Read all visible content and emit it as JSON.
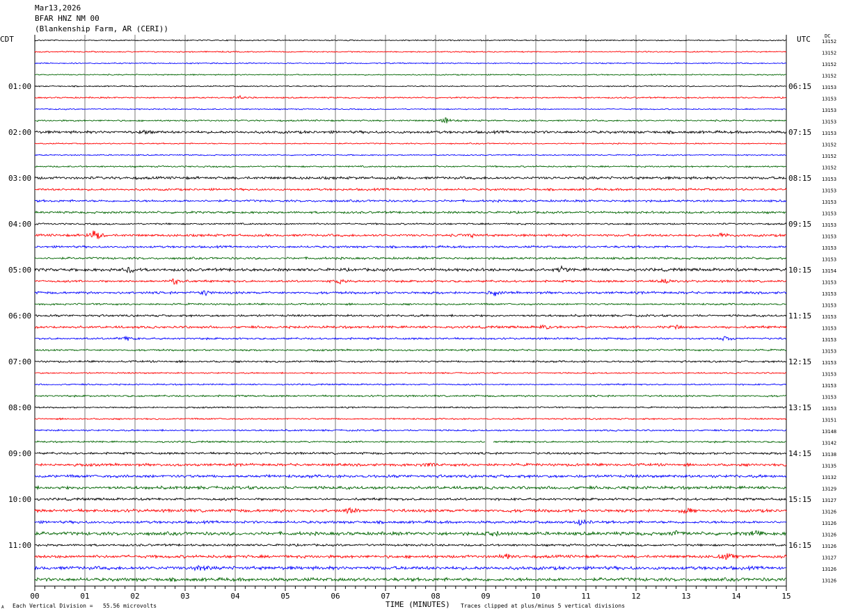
{
  "header": {
    "date": "Mar13,2026",
    "channel": "BFAR HNZ NM 00",
    "station": "(Blankenship Farm, AR (CERI))"
  },
  "axes": {
    "left_zone": "CDT",
    "right_zone": "UTC",
    "dc_label": "DC",
    "xlabel": "TIME (MINUTES)"
  },
  "footer": {
    "scale_note": "Each Vertical Division =   55.56 microvolts",
    "clip_note": "Traces clipped at plus/minus 5 vertical divisions",
    "corner_mark": "A"
  },
  "colors": {
    "trace_cycle": [
      "#000000",
      "#ff0000",
      "#0000ff",
      "#006400"
    ],
    "grid": "#000000",
    "background": "#ffffff"
  },
  "chart_data": {
    "type": "line",
    "title": "",
    "xlabel": "TIME (MINUTES)",
    "xlim": [
      0,
      15
    ],
    "x_ticks": [
      "00",
      "01",
      "02",
      "03",
      "04",
      "05",
      "06",
      "07",
      "08",
      "09",
      "10",
      "11",
      "12",
      "13",
      "14",
      "15"
    ],
    "traces_per_hour": 4,
    "minutes_per_trace": 15,
    "left_hour_labels": [
      "01:00",
      "02:00",
      "03:00",
      "04:00",
      "05:00",
      "06:00",
      "07:00",
      "08:00",
      "09:00",
      "10:00",
      "11:00"
    ],
    "right_hour_labels": [
      "06:15",
      "07:15",
      "08:15",
      "09:15",
      "10:15",
      "11:15",
      "12:15",
      "13:15",
      "14:15",
      "15:15",
      "16:15"
    ],
    "dc_offsets": [
      13152,
      13152,
      13152,
      13152,
      13153,
      13153,
      13153,
      13153,
      13153,
      13152,
      13152,
      13152,
      13153,
      13153,
      13153,
      13153,
      13153,
      13153,
      13153,
      13153,
      13154,
      13153,
      13153,
      13153,
      13153,
      13153,
      13153,
      13153,
      13153,
      13153,
      13153,
      13153,
      13153,
      13151,
      13148,
      13142,
      13138,
      13135,
      13132,
      13129,
      13127,
      13126,
      13126,
      13126,
      13126,
      13127,
      13126,
      13126
    ],
    "amplitude_level": [
      1,
      1,
      1,
      1,
      1,
      1.2,
      1,
      1.3,
      2.2,
      1,
      1,
      1.3,
      2.2,
      1.8,
      1.8,
      1.8,
      1.4,
      2,
      1.8,
      1.8,
      2.4,
      1.8,
      2,
      1.5,
      1.8,
      2,
      1.6,
      1.5,
      1.6,
      1.2,
      1.2,
      1.5,
      1.2,
      1.3,
      1.4,
      1.4,
      1.8,
      2.2,
      2.4,
      2.5,
      2,
      2.5,
      2.2,
      2.8,
      1.8,
      2.4,
      2.8,
      2.8
    ],
    "events": [
      {
        "trace": 5,
        "minute": 4.1,
        "amp": 3
      },
      {
        "trace": 7,
        "minute": 8.2,
        "amp": 5
      },
      {
        "trace": 8,
        "minute": 2.2,
        "amp": 4
      },
      {
        "trace": 17,
        "minute": 1.2,
        "amp": 12
      },
      {
        "trace": 17,
        "minute": 13.7,
        "amp": 5
      },
      {
        "trace": 17,
        "minute": 8.7,
        "amp": 4
      },
      {
        "trace": 20,
        "minute": 1.9,
        "amp": 5
      },
      {
        "trace": 20,
        "minute": 10.5,
        "amp": 4
      },
      {
        "trace": 21,
        "minute": 2.8,
        "amp": 6
      },
      {
        "trace": 21,
        "minute": 12.6,
        "amp": 5
      },
      {
        "trace": 21,
        "minute": 6.1,
        "amp": 4
      },
      {
        "trace": 22,
        "minute": 3.4,
        "amp": 5
      },
      {
        "trace": 22,
        "minute": 9.2,
        "amp": 4
      },
      {
        "trace": 25,
        "minute": 10.2,
        "amp": 4
      },
      {
        "trace": 25,
        "minute": 12.8,
        "amp": 4
      },
      {
        "trace": 26,
        "minute": 1.8,
        "amp": 4
      },
      {
        "trace": 26,
        "minute": 13.8,
        "amp": 5
      },
      {
        "trace": 37,
        "minute": 7.9,
        "amp": 5
      },
      {
        "trace": 41,
        "minute": 6.3,
        "amp": 4
      },
      {
        "trace": 41,
        "minute": 13.0,
        "amp": 5
      },
      {
        "trace": 42,
        "minute": 10.9,
        "amp": 6
      },
      {
        "trace": 43,
        "minute": 9.2,
        "amp": 5
      },
      {
        "trace": 43,
        "minute": 12.8,
        "amp": 5
      },
      {
        "trace": 43,
        "minute": 14.4,
        "amp": 5
      },
      {
        "trace": 45,
        "minute": 9.4,
        "amp": 5
      },
      {
        "trace": 45,
        "minute": 13.8,
        "amp": 6
      },
      {
        "trace": 46,
        "minute": 3.3,
        "amp": 6
      }
    ],
    "gap": {
      "trace": 35,
      "from_minute": 9.0,
      "to_minute": 9.15
    }
  }
}
